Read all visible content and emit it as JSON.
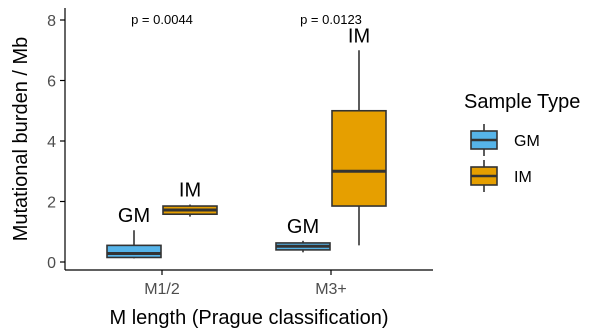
{
  "chart_data": {
    "type": "box",
    "xlabel": "M length (Prague classification)",
    "ylabel": "Mutational burden / Mb",
    "ylim": [
      -0.35,
      8.35
    ],
    "yticks": [
      0,
      2,
      4,
      6,
      8
    ],
    "categories": [
      "M1/2",
      "M3+"
    ],
    "legend": {
      "title": "Sample Type",
      "position": "right",
      "entries": [
        {
          "name": "GM",
          "color": "#56B4E9"
        },
        {
          "name": "IM",
          "color": "#E69F00"
        }
      ]
    },
    "pvalues": [
      {
        "category": "M1/2",
        "text": "p = 0.0044"
      },
      {
        "category": "M3+",
        "text": "p = 0.0123"
      }
    ],
    "boxes": [
      {
        "category": "M1/2",
        "group": "GM",
        "label": "GM",
        "min": 0.12,
        "q1": 0.15,
        "median": 0.28,
        "q3": 0.55,
        "max": 1.05
      },
      {
        "category": "M1/2",
        "group": "IM",
        "label": "IM",
        "min": 1.5,
        "q1": 1.58,
        "median": 1.72,
        "q3": 1.85,
        "max": 1.9
      },
      {
        "category": "M3+",
        "group": "GM",
        "label": "GM",
        "min": 0.32,
        "q1": 0.4,
        "median": 0.52,
        "q3": 0.63,
        "max": 0.7
      },
      {
        "category": "M3+",
        "group": "IM",
        "label": "IM",
        "min": 0.55,
        "q1": 1.85,
        "median": 3.0,
        "q3": 5.0,
        "max": 7.0
      }
    ]
  }
}
